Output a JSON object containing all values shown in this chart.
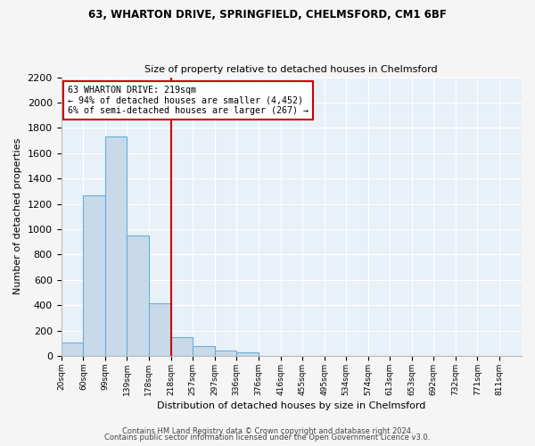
{
  "title1": "63, WHARTON DRIVE, SPRINGFIELD, CHELMSFORD, CM1 6BF",
  "title2": "Size of property relative to detached houses in Chelmsford",
  "xlabel": "Distribution of detached houses by size in Chelmsford",
  "ylabel": "Number of detached properties",
  "footer1": "Contains HM Land Registry data © Crown copyright and database right 2024.",
  "footer2": "Contains public sector information licensed under the Open Government Licence v3.0.",
  "categories": [
    "20sqm",
    "60sqm",
    "99sqm",
    "139sqm",
    "178sqm",
    "218sqm",
    "257sqm",
    "297sqm",
    "336sqm",
    "376sqm",
    "416sqm",
    "455sqm",
    "495sqm",
    "534sqm",
    "574sqm",
    "613sqm",
    "653sqm",
    "692sqm",
    "732sqm",
    "771sqm",
    "811sqm"
  ],
  "values": [
    107,
    1270,
    1730,
    950,
    415,
    150,
    80,
    45,
    30,
    0,
    0,
    0,
    0,
    0,
    0,
    0,
    0,
    0,
    0,
    0,
    0
  ],
  "bar_color": "#c8daea",
  "bar_edge_color": "#6aaed6",
  "property_line_x": 218,
  "ylim": [
    0,
    2200
  ],
  "yticks": [
    0,
    200,
    400,
    600,
    800,
    1000,
    1200,
    1400,
    1600,
    1800,
    2000,
    2200
  ],
  "annotation_title": "63 WHARTON DRIVE: 219sqm",
  "annotation_line1": "← 94% of detached houses are smaller (4,452)",
  "annotation_line2": "6% of semi-detached houses are larger (267) →",
  "annotation_box_color": "#cc0000",
  "vline_color": "#cc0000",
  "plot_bg_color": "#e8f0f8",
  "fig_bg_color": "#f5f5f5",
  "grid_color": "#ffffff"
}
